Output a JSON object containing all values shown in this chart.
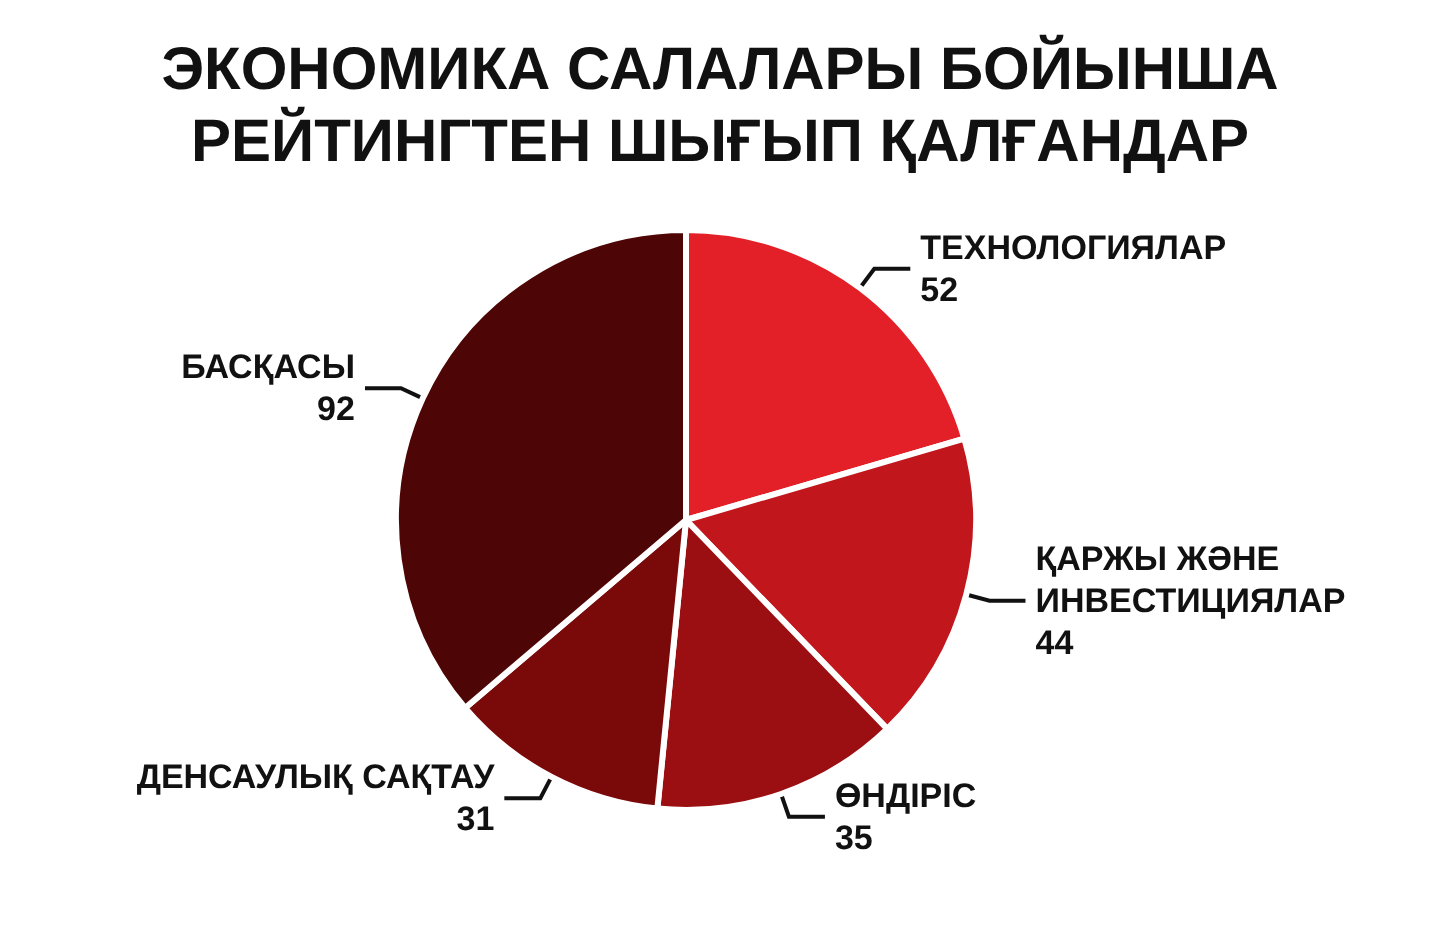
{
  "chart_data": {
    "type": "pie",
    "title": "ЭКОНОМИКА САЛАЛАРЫ БОЙЫНША\nРЕЙТИНГТЕН ШЫҒЫП ҚАЛҒАНДАР",
    "categories": [
      "ТЕХНОЛОГИЯЛАР",
      "ҚАРЖЫ ЖӘНЕ ИНВЕСТИЦИЯЛАР",
      "ӨНДІРІС",
      "ДЕНСАУЛЫҚ САҚТАУ",
      "БАСҚАСЫ"
    ],
    "values": [
      52,
      44,
      35,
      31,
      92
    ],
    "colors": [
      "#e32028",
      "#c0161c",
      "#9b0f12",
      "#7a0a0a",
      "#4e0505"
    ],
    "data_labels": true,
    "legend": false
  }
}
